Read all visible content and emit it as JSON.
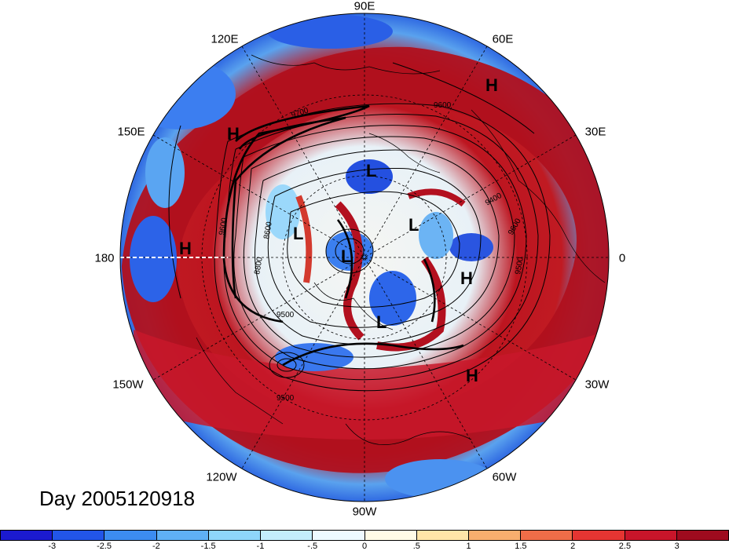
{
  "map": {
    "projection": "north-polar-stereographic",
    "longitude_labels": [
      "90E",
      "60E",
      "30E",
      "0",
      "30W",
      "60W",
      "90W",
      "120W",
      "150W",
      "180",
      "150E",
      "120E"
    ],
    "pressure_markers": [
      {
        "type": "H",
        "label": "H"
      },
      {
        "type": "H",
        "label": "H"
      },
      {
        "type": "H",
        "label": "H"
      },
      {
        "type": "H",
        "label": "H"
      },
      {
        "type": "H",
        "label": "H"
      },
      {
        "type": "L",
        "label": "L"
      },
      {
        "type": "L",
        "label": "L"
      },
      {
        "type": "L",
        "label": "L"
      },
      {
        "type": "L",
        "label": "L"
      },
      {
        "type": "L",
        "label": "L"
      }
    ],
    "contour_labels": [
      "9700",
      "9600",
      "9400",
      "9600",
      "9500",
      "8600",
      "8800",
      "9500",
      "9500",
      "9600"
    ]
  },
  "date_label": "Day 2005120918",
  "colorbar": {
    "colors": [
      "#1b1ad0",
      "#2255e8",
      "#3c8cf0",
      "#5fb0f5",
      "#8ed6fa",
      "#c4eefc",
      "#eefaff",
      "#fffbe6",
      "#ffe5a8",
      "#f8ae6e",
      "#ef6d48",
      "#e53532",
      "#c8152a",
      "#9e0b1e"
    ],
    "tick_labels": [
      "-3",
      "-2.5",
      "-2",
      "-1.5",
      "-1",
      "-.5",
      "0",
      ".5",
      "1",
      "1.5",
      "2",
      "2.5",
      "3"
    ]
  }
}
